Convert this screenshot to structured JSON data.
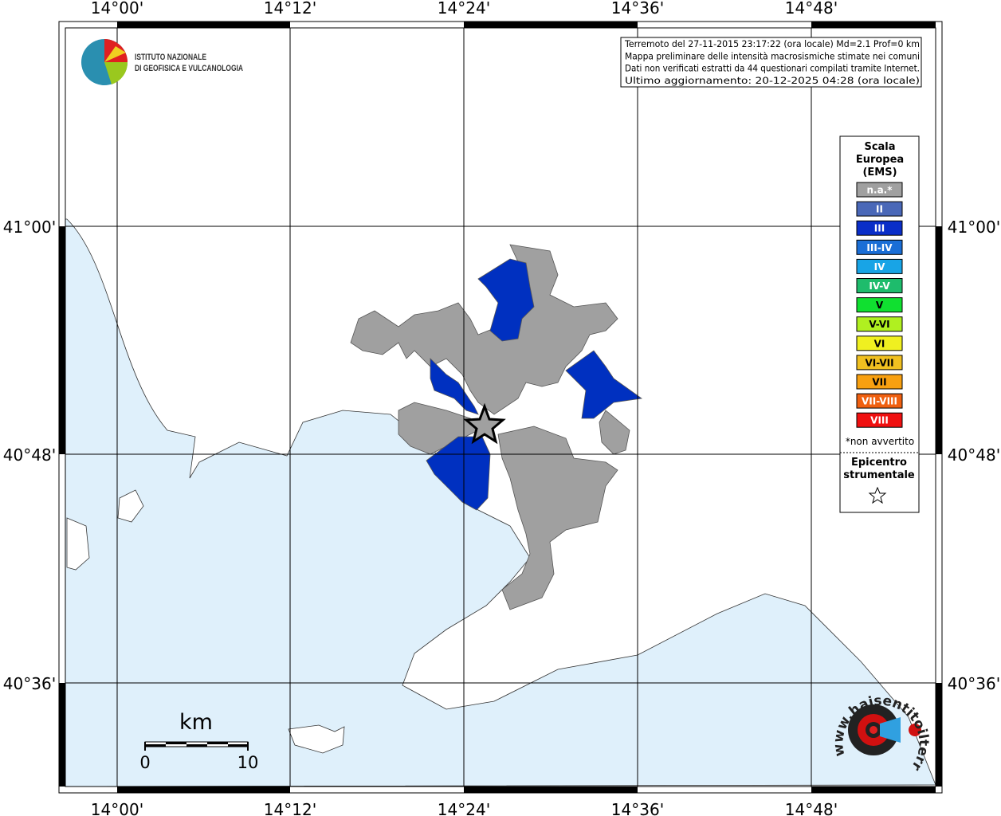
{
  "header": {
    "logo_lines": [
      "ISTITUTO NAZIONALE",
      "DI GEOFISICA E VULCANOLOGIA"
    ]
  },
  "info": [
    "Terremoto del 27-11-2015 23:17:22 (ora locale) Md=2.1 Prof=0 km",
    "Mappa preliminare delle intensità macrosismiche stimate nei comuni",
    "Dati non verificati estratti da 44 questionari compilati tramite Internet.",
    "Ultimo aggiornamento: 20-12-2025 04:28 (ora locale)"
  ],
  "map": {
    "longitude_labels": [
      "14°00'",
      "14°12'",
      "14°24'",
      "14°36'",
      "14°48'"
    ],
    "latitude_labels": [
      "41°00'",
      "40°48'",
      "40°36'"
    ]
  },
  "legend": {
    "title": [
      "Scala",
      "Europea",
      "(EMS)"
    ],
    "items": [
      {
        "label": "n.a.*",
        "color": "#a0a0a0"
      },
      {
        "label": "II",
        "color": "#4a68b8"
      },
      {
        "label": "III",
        "color": "#0a2ec8"
      },
      {
        "label": "III-IV",
        "color": "#1a6ed6"
      },
      {
        "label": "IV",
        "color": "#18a4e6"
      },
      {
        "label": "IV-V",
        "color": "#1ebc6c"
      },
      {
        "label": "V",
        "color": "#10e030"
      },
      {
        "label": "V-VI",
        "color": "#b0f020"
      },
      {
        "label": "VI",
        "color": "#f0f020"
      },
      {
        "label": "VI-VII",
        "color": "#f0c020"
      },
      {
        "label": "VII",
        "color": "#f8a010"
      },
      {
        "label": "VII-VIII",
        "color": "#f06010"
      },
      {
        "label": "VIII",
        "color": "#f01010"
      }
    ],
    "note": "*non avvertito",
    "epicenter": [
      "Epicentro",
      "strumentale"
    ]
  },
  "scale_bar": {
    "unit": "km",
    "labels": [
      "0",
      "10"
    ]
  },
  "badge": "www.haisentitoilterremoto.it"
}
